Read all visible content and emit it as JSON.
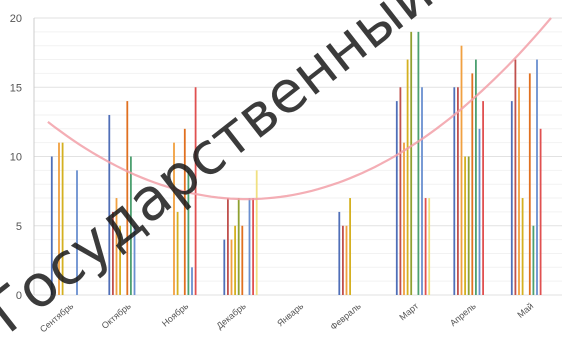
{
  "chart_data": {
    "type": "bar",
    "title": "",
    "xlabel": "",
    "ylabel": "",
    "ylim": [
      0,
      20
    ],
    "yticks": [
      0,
      5,
      10,
      15,
      20
    ],
    "grid": true,
    "categories": [
      "Сентябрь",
      "Октябрь",
      "Ноябрь",
      "Декабрь",
      "Январь",
      "Февраль",
      "Март",
      "Апрель",
      "Май"
    ],
    "series": [
      {
        "color": "#4f6fb8",
        "values": [
          10,
          13,
          0,
          4,
          0,
          6,
          14,
          15,
          14
        ]
      },
      {
        "color": "#c0504d",
        "values": [
          0,
          6,
          0,
          7,
          0,
          5,
          15,
          15,
          17
        ]
      },
      {
        "color": "#f0a040",
        "values": [
          11,
          7,
          11,
          4,
          0,
          5,
          11,
          18,
          15
        ]
      },
      {
        "color": "#d4b020",
        "values": [
          11,
          5,
          6,
          5,
          0,
          7,
          17,
          10,
          7
        ]
      },
      {
        "color": "#8fa030",
        "values": [
          0,
          0,
          0,
          7,
          0,
          0,
          19,
          10,
          0
        ]
      },
      {
        "color": "#e07020",
        "values": [
          0,
          14,
          12,
          5,
          0,
          0,
          0,
          16,
          16
        ]
      },
      {
        "color": "#4ca070",
        "values": [
          0,
          10,
          9,
          0,
          0,
          0,
          19,
          17,
          5
        ]
      },
      {
        "color": "#6a8fd0",
        "values": [
          9,
          5,
          2,
          7,
          0,
          0,
          15,
          12,
          17
        ]
      },
      {
        "color": "#e05050",
        "values": [
          0,
          0,
          15,
          7,
          0,
          0,
          7,
          14,
          12
        ]
      },
      {
        "color": "#f0e080",
        "values": [
          0,
          0,
          0,
          9,
          0,
          0,
          7,
          0,
          0
        ]
      }
    ],
    "trend": {
      "color": "#f2a0a8",
      "points": [
        [
          -0.35,
          12.5
        ],
        [
          2.7,
          7
        ],
        [
          8.4,
          20
        ]
      ]
    }
  },
  "watermark": {
    "text": "Государственный университет",
    "color": "#1a1a1a"
  }
}
